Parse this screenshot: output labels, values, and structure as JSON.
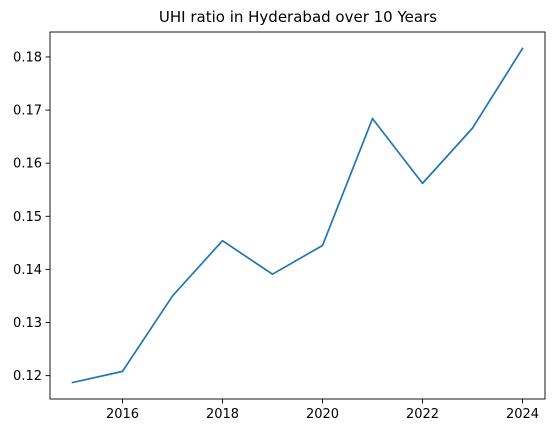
{
  "chart_data": {
    "type": "line",
    "title": "UHI ratio in Hyderabad over 10 Years",
    "xlabel": "",
    "ylabel": "",
    "x": [
      2015,
      2016,
      2017,
      2018,
      2019,
      2020,
      2021,
      2022,
      2023,
      2024
    ],
    "series": [
      {
        "values": [
          0.1187,
          0.1208,
          0.135,
          0.1454,
          0.1391,
          0.1445,
          0.1684,
          0.1562,
          0.1666,
          0.1816
        ],
        "color": "#1f77b4"
      }
    ],
    "xlim": [
      2014.55,
      2024.45
    ],
    "ylim": [
      0.1156,
      0.1847
    ],
    "xticks": [
      2016,
      2018,
      2020,
      2022,
      2024
    ],
    "xtick_labels": [
      "2016",
      "2018",
      "2020",
      "2022",
      "2024"
    ],
    "yticks": [
      0.12,
      0.13,
      0.14,
      0.15,
      0.16,
      0.17,
      0.18
    ],
    "ytick_labels": [
      "0.12",
      "0.13",
      "0.14",
      "0.15",
      "0.16",
      "0.17",
      "0.18"
    ],
    "grid": false,
    "legend": "none"
  }
}
